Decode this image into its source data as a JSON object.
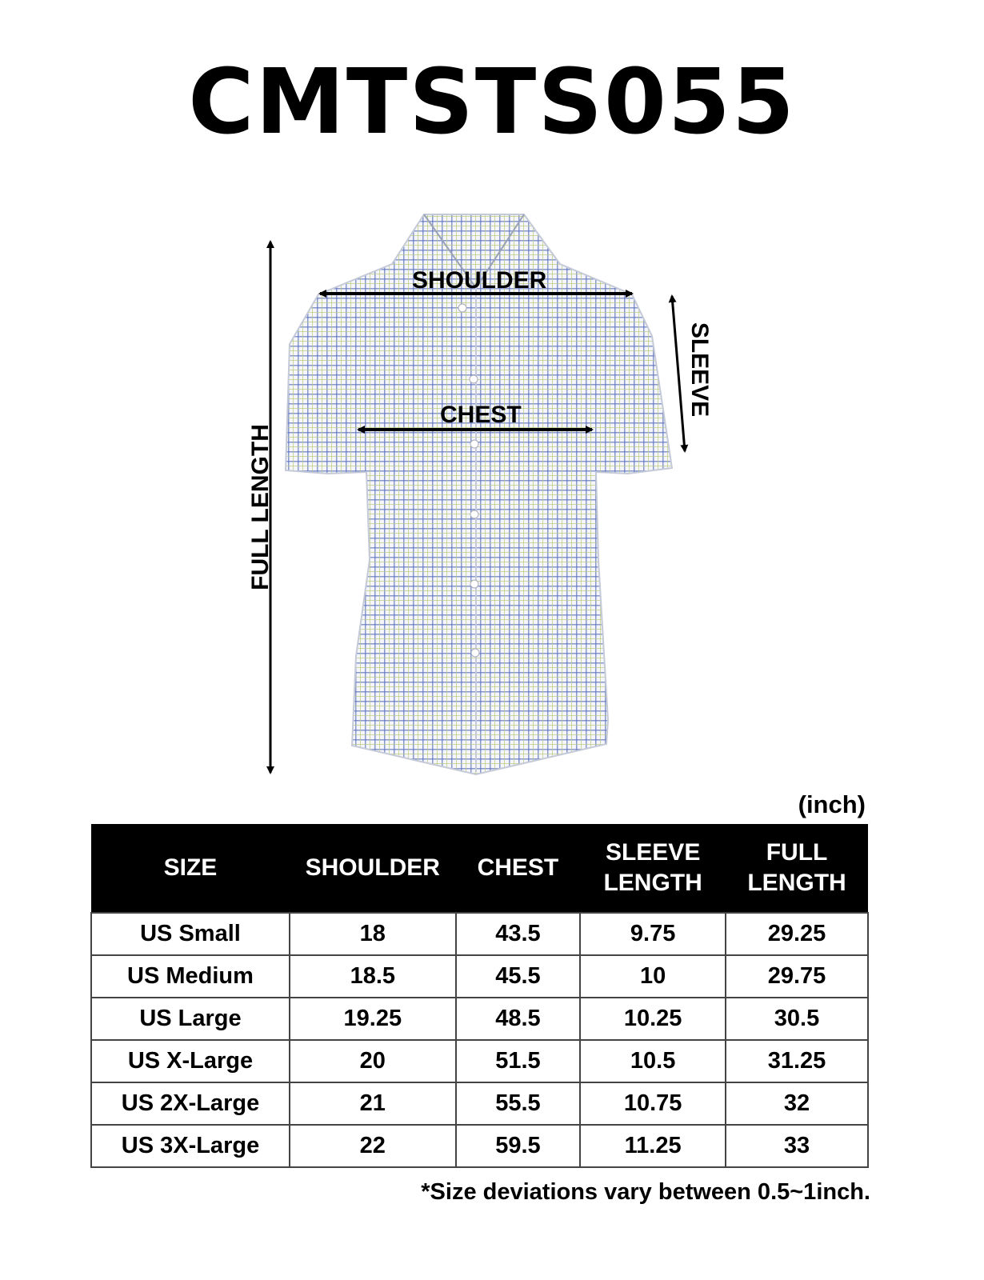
{
  "title": "CMTSTS055",
  "diagram": {
    "shoulder_label": "SHOULDER",
    "chest_label": "CHEST",
    "sleeve_label": "SLEEVE",
    "full_length_label": "FULL LENGTH",
    "shirt_colors": {
      "base": "#f4f6fb",
      "check_blue": "#5a6fb8",
      "check_green": "#b9c97a"
    }
  },
  "unit": "(inch)",
  "table": {
    "headers": [
      "SIZE",
      "SHOULDER",
      "CHEST",
      "SLEEVE LENGTH",
      "FULL LENGTH"
    ],
    "rows": [
      [
        "US Small",
        "18",
        "43.5",
        "9.75",
        "29.25"
      ],
      [
        "US Medium",
        "18.5",
        "45.5",
        "10",
        "29.75"
      ],
      [
        "US Large",
        "19.25",
        "48.5",
        "10.25",
        "30.5"
      ],
      [
        "US X-Large",
        "20",
        "51.5",
        "10.5",
        "31.25"
      ],
      [
        "US 2X-Large",
        "21",
        "55.5",
        "10.75",
        "32"
      ],
      [
        "US 3X-Large",
        "22",
        "59.5",
        "11.25",
        "33"
      ]
    ]
  },
  "note": "*Size deviations vary between 0.5~1inch."
}
